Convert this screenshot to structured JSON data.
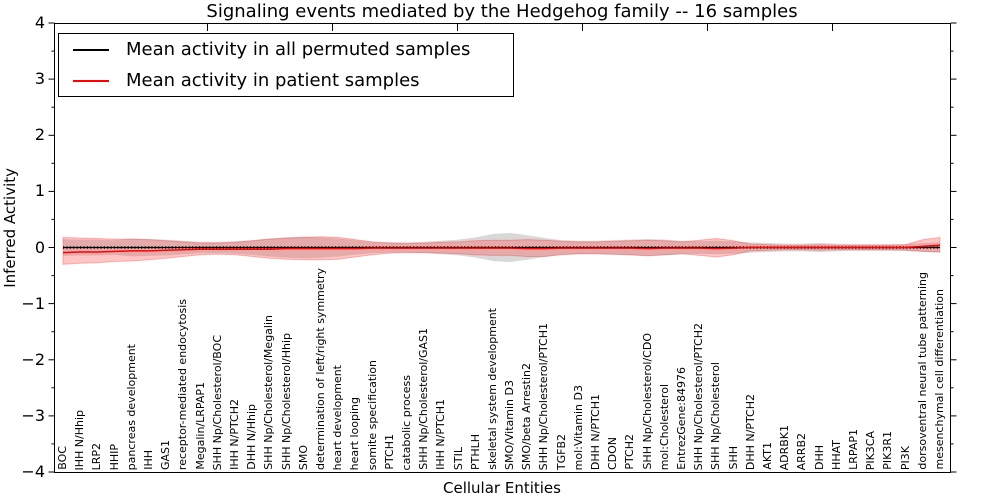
{
  "chart_data": {
    "type": "line",
    "title": "Signaling events mediated by the Hedgehog family -- 16 samples",
    "xlabel": "Cellular Entities",
    "ylabel": "Inferred Activity",
    "ylim": [
      -4,
      4
    ],
    "ytick_labels": [
      "4",
      "3",
      "2",
      "1",
      "0",
      "−1",
      "−2",
      "−3",
      "−4"
    ],
    "grid": false,
    "legend_position": "upper left",
    "categories": [
      "BOC",
      "IHH N/Hhip",
      "LRP2",
      "HHIP",
      "pancreas development",
      "IHH",
      "GAS1",
      "receptor-mediated endocytosis",
      "Megalin/LRPAP1",
      "SHH Np/Cholesterol/BOC",
      "IHH N/PTCH2",
      "DHH N/Hhip",
      "SHH Np/Cholesterol/Megalin",
      "SHH Np/Cholesterol/Hhip",
      "SMO",
      "determination of left/right symmetry",
      "heart development",
      "heart looping",
      "somite specification",
      "PTCH1",
      "catabolic process",
      "SHH Np/Cholesterol/GAS1",
      "IHH N/PTCH1",
      "STIL",
      "PTHLH",
      "skeletal system development",
      "SMO/Vitamin D3",
      "SMO/beta Arrestin2",
      "SHH Np/Cholesterol/PTCH1",
      "TGFB2",
      "mol:Vitamin D3",
      "DHH N/PTCH1",
      "CDON",
      "PTCH2",
      "SHH Np/Cholesterol/CDO",
      "mol:Cholesterol",
      "EntrezGene:84976",
      "SHH Np/Cholesterol/PTCH2",
      "SHH Np/Cholesterol",
      "SHH",
      "DHH N/PTCH2",
      "AKT1",
      "ADRBK1",
      "ARRB2",
      "DHH",
      "HHAT",
      "LRPAP1",
      "PIK3CA",
      "PIK3R1",
      "PI3K",
      "dorsoventral neural tube patterning",
      "mesenchymal cell differentiation"
    ],
    "series": [
      {
        "name": "Mean activity in all permuted samples",
        "color": "#000000",
        "band_color": "#999999",
        "values": [
          0,
          0,
          0,
          0,
          0,
          0,
          0,
          0,
          0,
          0,
          0,
          0,
          0,
          0,
          0,
          0,
          0,
          0,
          0,
          0,
          0,
          0,
          0,
          0,
          0,
          0,
          0,
          0,
          0,
          0,
          0,
          0,
          0,
          0,
          0,
          0,
          0,
          0,
          0,
          0,
          0,
          0,
          0,
          0,
          0,
          0,
          0,
          0,
          0,
          0,
          0,
          0
        ],
        "band_upper": [
          0.15,
          0.14,
          0.14,
          0.13,
          0.16,
          0.15,
          0.14,
          0.12,
          0.1,
          0.1,
          0.11,
          0.13,
          0.16,
          0.18,
          0.19,
          0.18,
          0.16,
          0.13,
          0.1,
          0.09,
          0.09,
          0.1,
          0.12,
          0.14,
          0.18,
          0.24,
          0.26,
          0.22,
          0.17,
          0.13,
          0.12,
          0.12,
          0.13,
          0.14,
          0.15,
          0.14,
          0.12,
          0.11,
          0.12,
          0.11,
          0.09,
          0.08,
          0.07,
          0.07,
          0.08,
          0.07,
          0.06,
          0.06,
          0.06,
          0.06,
          0.08,
          0.09
        ],
        "band_lower": [
          -0.15,
          -0.14,
          -0.14,
          -0.13,
          -0.16,
          -0.15,
          -0.14,
          -0.12,
          -0.1,
          -0.1,
          -0.11,
          -0.13,
          -0.16,
          -0.18,
          -0.19,
          -0.18,
          -0.16,
          -0.13,
          -0.1,
          -0.09,
          -0.09,
          -0.1,
          -0.12,
          -0.14,
          -0.18,
          -0.24,
          -0.26,
          -0.22,
          -0.17,
          -0.13,
          -0.12,
          -0.12,
          -0.13,
          -0.14,
          -0.15,
          -0.14,
          -0.12,
          -0.11,
          -0.12,
          -0.11,
          -0.09,
          -0.08,
          -0.07,
          -0.07,
          -0.08,
          -0.07,
          -0.06,
          -0.06,
          -0.06,
          -0.06,
          -0.08,
          -0.09
        ]
      },
      {
        "name": "Mean activity in patient samples",
        "color": "#ff0000",
        "band_color": "#ff5555",
        "values": [
          -0.09,
          -0.08,
          -0.08,
          -0.07,
          -0.06,
          -0.06,
          -0.05,
          -0.04,
          -0.03,
          -0.03,
          -0.03,
          -0.03,
          -0.03,
          -0.02,
          -0.02,
          -0.02,
          -0.02,
          -0.02,
          -0.01,
          -0.01,
          -0.01,
          -0.01,
          -0.01,
          -0.01,
          -0.01,
          -0.01,
          -0.01,
          -0.02,
          -0.02,
          -0.01,
          -0.01,
          -0.01,
          -0.01,
          -0.01,
          -0.02,
          -0.01,
          -0.01,
          -0.01,
          -0.02,
          -0.01,
          0.0,
          0.0,
          0.0,
          0.0,
          0.0,
          0.0,
          0.0,
          0.0,
          0.0,
          0.0,
          0.02,
          0.04
        ],
        "band_upper": [
          0.18,
          0.17,
          0.16,
          0.15,
          0.15,
          0.14,
          0.12,
          0.1,
          0.08,
          0.08,
          0.09,
          0.12,
          0.15,
          0.17,
          0.18,
          0.19,
          0.18,
          0.14,
          0.1,
          0.08,
          0.07,
          0.08,
          0.09,
          0.1,
          0.12,
          0.13,
          0.13,
          0.14,
          0.13,
          0.11,
          0.1,
          0.1,
          0.11,
          0.12,
          0.13,
          0.12,
          0.1,
          0.13,
          0.16,
          0.12,
          0.06,
          0.05,
          0.04,
          0.04,
          0.05,
          0.04,
          0.04,
          0.04,
          0.04,
          0.05,
          0.14,
          0.18
        ],
        "band_lower": [
          -0.3,
          -0.28,
          -0.27,
          -0.25,
          -0.24,
          -0.22,
          -0.19,
          -0.16,
          -0.13,
          -0.12,
          -0.13,
          -0.16,
          -0.19,
          -0.21,
          -0.22,
          -0.22,
          -0.21,
          -0.17,
          -0.13,
          -0.1,
          -0.09,
          -0.09,
          -0.1,
          -0.11,
          -0.13,
          -0.14,
          -0.14,
          -0.16,
          -0.16,
          -0.13,
          -0.11,
          -0.11,
          -0.12,
          -0.13,
          -0.15,
          -0.13,
          -0.11,
          -0.14,
          -0.17,
          -0.13,
          -0.06,
          -0.05,
          -0.04,
          -0.04,
          -0.05,
          -0.04,
          -0.04,
          -0.04,
          -0.04,
          -0.05,
          -0.07,
          -0.08
        ]
      }
    ]
  }
}
